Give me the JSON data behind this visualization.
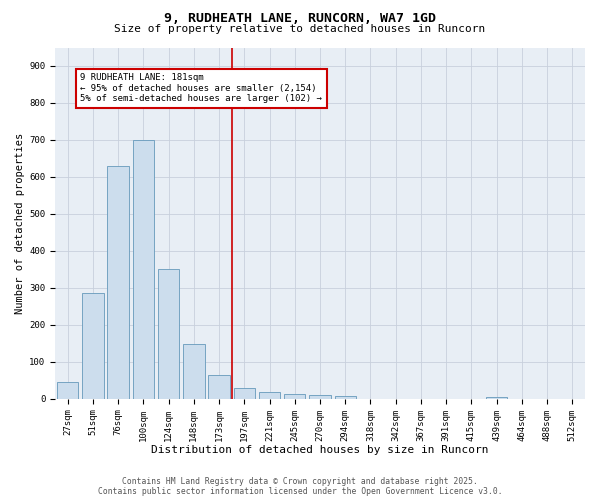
{
  "title": "9, RUDHEATH LANE, RUNCORN, WA7 1GD",
  "subtitle": "Size of property relative to detached houses in Runcorn",
  "xlabel": "Distribution of detached houses by size in Runcorn",
  "ylabel": "Number of detached properties",
  "footer_line1": "Contains HM Land Registry data © Crown copyright and database right 2025.",
  "footer_line2": "Contains public sector information licensed under the Open Government Licence v3.0.",
  "bar_color": "#ccdded",
  "bar_edge_color": "#6699bb",
  "grid_color": "#c8d0dc",
  "background_color": "#e8eef5",
  "annotation_box_color": "#cc0000",
  "vline_color": "#cc0000",
  "categories": [
    "27sqm",
    "51sqm",
    "76sqm",
    "100sqm",
    "124sqm",
    "148sqm",
    "173sqm",
    "197sqm",
    "221sqm",
    "245sqm",
    "270sqm",
    "294sqm",
    "318sqm",
    "342sqm",
    "367sqm",
    "391sqm",
    "415sqm",
    "439sqm",
    "464sqm",
    "488sqm",
    "512sqm"
  ],
  "values": [
    45,
    285,
    630,
    700,
    350,
    147,
    65,
    30,
    18,
    13,
    10,
    8,
    0,
    0,
    0,
    0,
    0,
    6,
    0,
    0,
    0
  ],
  "ylim": [
    0,
    950
  ],
  "yticks": [
    0,
    100,
    200,
    300,
    400,
    500,
    600,
    700,
    800,
    900
  ],
  "annotation_text": "9 RUDHEATH LANE: 181sqm\n← 95% of detached houses are smaller (2,154)\n5% of semi-detached houses are larger (102) →",
  "vline_x": 6.5,
  "title_fontsize": 9.5,
  "subtitle_fontsize": 8,
  "tick_fontsize": 6.5,
  "ylabel_fontsize": 7.5,
  "xlabel_fontsize": 8,
  "annotation_fontsize": 6.5,
  "footer_fontsize": 5.8
}
